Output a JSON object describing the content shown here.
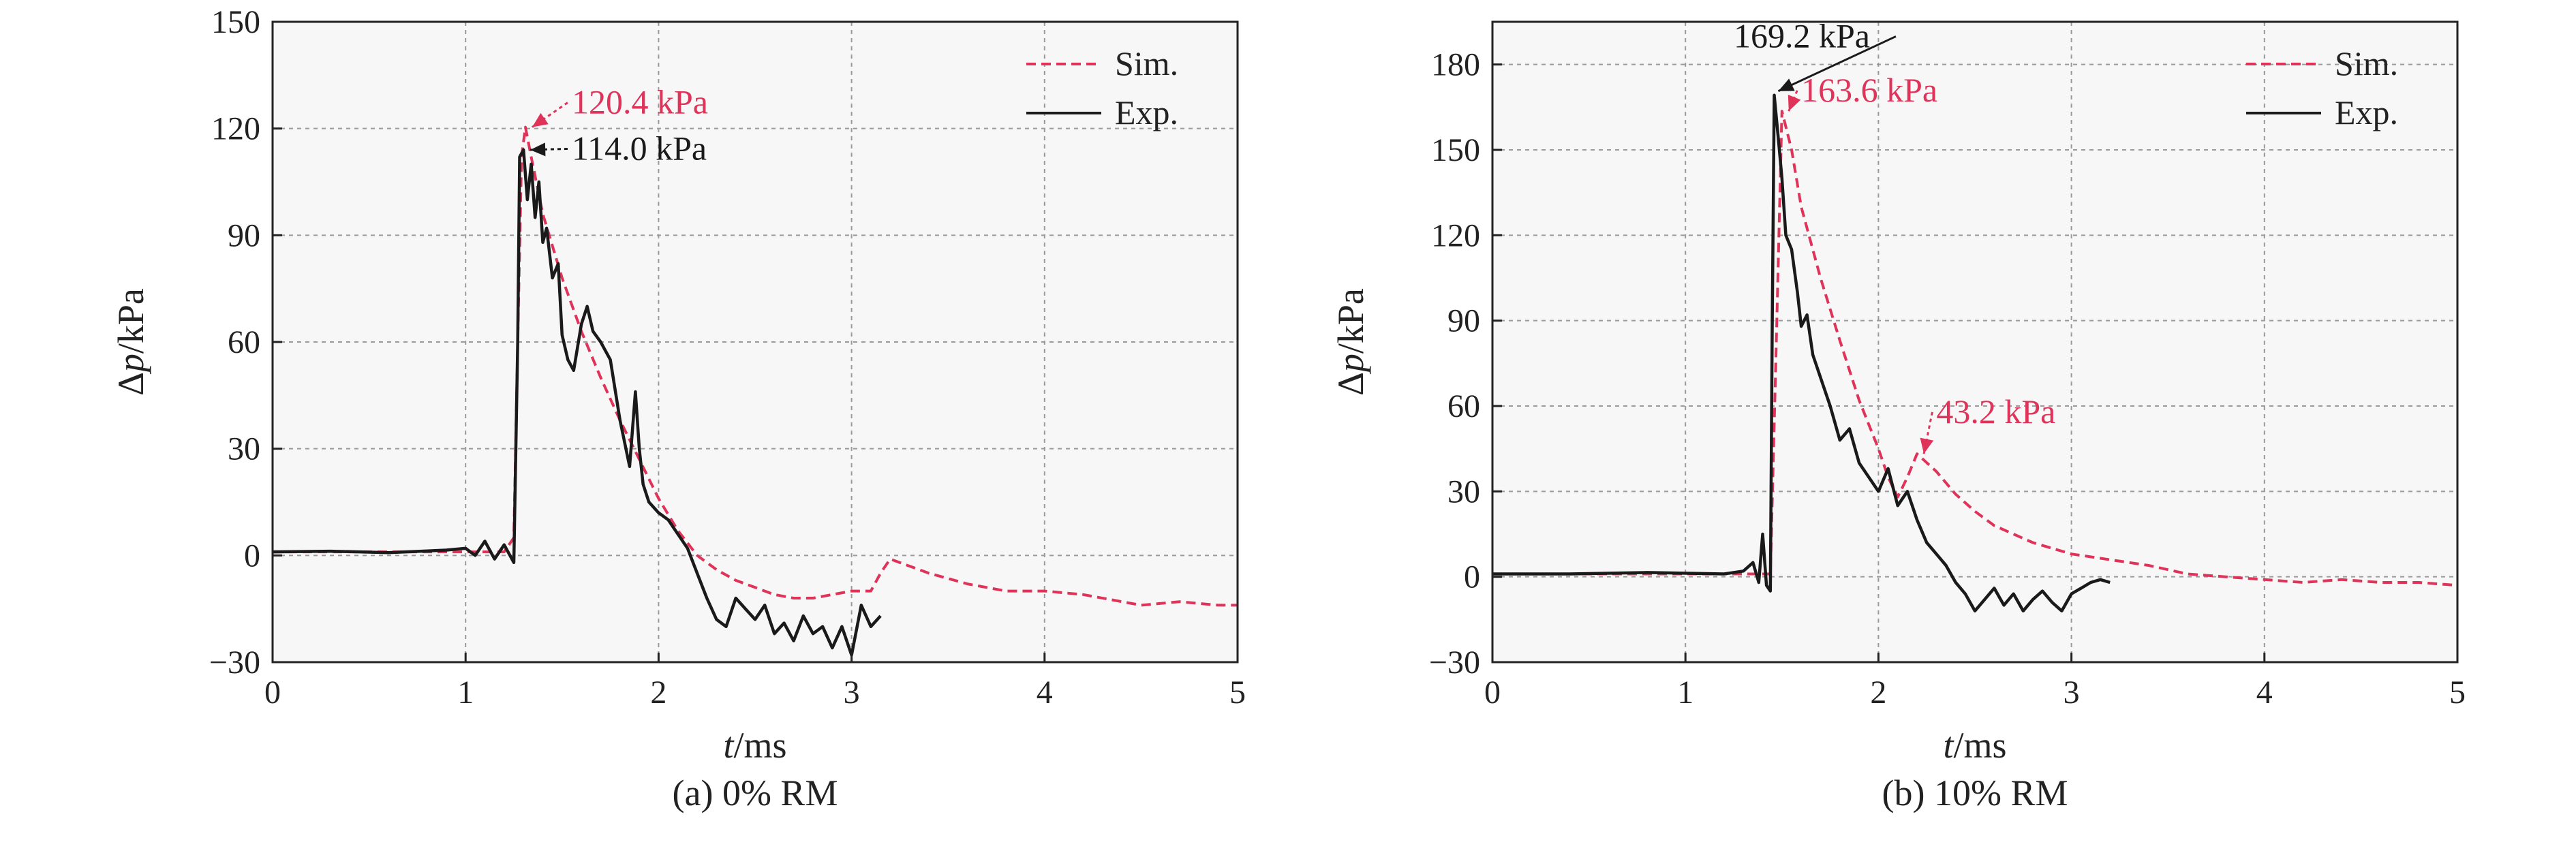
{
  "colors": {
    "sim": "#e0335a",
    "exp": "#1a1a1a",
    "grid": "#9a9a9a",
    "plot_bg": "#f7f7f7"
  },
  "chart_data": [
    {
      "type": "line",
      "caption": "(a) 0% RM",
      "xlabel_var": "t",
      "xlabel_unit": "/ms",
      "ylabel_prefix": "Δ",
      "ylabel_var": "p",
      "ylabel_unit": "/kPa",
      "xlim": [
        0,
        5
      ],
      "ylim": [
        -30,
        150
      ],
      "xticks": [
        0,
        1,
        2,
        3,
        4,
        5
      ],
      "yticks": [
        -30,
        0,
        30,
        60,
        90,
        120,
        150
      ],
      "ytick_labels": [
        "−30",
        "0",
        "30",
        "60",
        "90",
        "120",
        "150"
      ],
      "grid": true,
      "legend_position": "top-right",
      "series": [
        {
          "name": "Sim.",
          "style": "dashed",
          "color": "#e0335a",
          "points": [
            [
              0,
              1
            ],
            [
              1.0,
              1
            ],
            [
              1.2,
              1
            ],
            [
              1.25,
              5
            ],
            [
              1.27,
              60
            ],
            [
              1.29,
              112
            ],
            [
              1.31,
              120.4
            ],
            [
              1.34,
              112
            ],
            [
              1.4,
              96
            ],
            [
              1.5,
              78
            ],
            [
              1.6,
              63
            ],
            [
              1.7,
              50
            ],
            [
              1.8,
              38
            ],
            [
              1.9,
              27
            ],
            [
              2.0,
              16
            ],
            [
              2.1,
              7
            ],
            [
              2.2,
              0
            ],
            [
              2.3,
              -4
            ],
            [
              2.4,
              -7
            ],
            [
              2.5,
              -9
            ],
            [
              2.6,
              -11
            ],
            [
              2.7,
              -12
            ],
            [
              2.8,
              -12
            ],
            [
              2.9,
              -11
            ],
            [
              3.0,
              -10
            ],
            [
              3.1,
              -10
            ],
            [
              3.15,
              -5
            ],
            [
              3.2,
              -1
            ],
            [
              3.3,
              -3
            ],
            [
              3.4,
              -5
            ],
            [
              3.6,
              -8
            ],
            [
              3.8,
              -10
            ],
            [
              4.0,
              -10
            ],
            [
              4.2,
              -11
            ],
            [
              4.4,
              -13
            ],
            [
              4.5,
              -14
            ],
            [
              4.7,
              -13
            ],
            [
              4.9,
              -14
            ],
            [
              5.0,
              -14
            ]
          ]
        },
        {
          "name": "Exp.",
          "style": "solid",
          "color": "#1a1a1a",
          "points": [
            [
              0,
              1
            ],
            [
              0.3,
              1.2
            ],
            [
              0.6,
              0.8
            ],
            [
              0.9,
              1.5
            ],
            [
              1.0,
              2
            ],
            [
              1.05,
              0
            ],
            [
              1.1,
              4
            ],
            [
              1.15,
              -1
            ],
            [
              1.2,
              3
            ],
            [
              1.25,
              -2
            ],
            [
              1.27,
              60
            ],
            [
              1.28,
              112
            ],
            [
              1.3,
              114
            ],
            [
              1.32,
              100
            ],
            [
              1.34,
              110
            ],
            [
              1.36,
              95
            ],
            [
              1.38,
              105
            ],
            [
              1.4,
              88
            ],
            [
              1.42,
              92
            ],
            [
              1.45,
              78
            ],
            [
              1.48,
              82
            ],
            [
              1.5,
              62
            ],
            [
              1.53,
              55
            ],
            [
              1.56,
              52
            ],
            [
              1.6,
              65
            ],
            [
              1.63,
              70
            ],
            [
              1.66,
              63
            ],
            [
              1.7,
              60
            ],
            [
              1.75,
              55
            ],
            [
              1.8,
              38
            ],
            [
              1.85,
              25
            ],
            [
              1.88,
              46
            ],
            [
              1.9,
              30
            ],
            [
              1.92,
              20
            ],
            [
              1.95,
              15
            ],
            [
              2.0,
              12
            ],
            [
              2.05,
              10
            ],
            [
              2.1,
              6
            ],
            [
              2.15,
              2
            ],
            [
              2.2,
              -5
            ],
            [
              2.25,
              -12
            ],
            [
              2.3,
              -18
            ],
            [
              2.35,
              -20
            ],
            [
              2.4,
              -12
            ],
            [
              2.45,
              -15
            ],
            [
              2.5,
              -18
            ],
            [
              2.55,
              -14
            ],
            [
              2.6,
              -22
            ],
            [
              2.65,
              -19
            ],
            [
              2.7,
              -24
            ],
            [
              2.75,
              -17
            ],
            [
              2.8,
              -22
            ],
            [
              2.85,
              -20
            ],
            [
              2.9,
              -26
            ],
            [
              2.95,
              -20
            ],
            [
              3.0,
              -28
            ],
            [
              3.05,
              -14
            ],
            [
              3.1,
              -20
            ],
            [
              3.15,
              -17
            ]
          ]
        }
      ],
      "annotations": [
        {
          "text": "120.4 kPa",
          "color": "#e0335a",
          "x": 1.31,
          "y": 120.4,
          "label_x": 1.55,
          "label_y": 125
        },
        {
          "text": "114.0 kPa",
          "color": "#1a1a1a",
          "x": 1.3,
          "y": 114.0,
          "label_x": 1.55,
          "label_y": 112
        }
      ]
    },
    {
      "type": "line",
      "caption": "(b) 10% RM",
      "xlabel_var": "t",
      "xlabel_unit": "/ms",
      "ylabel_prefix": "Δ",
      "ylabel_var": "p",
      "ylabel_unit": "/kPa",
      "xlim": [
        0,
        5
      ],
      "ylim": [
        -30,
        195
      ],
      "xticks": [
        0,
        1,
        2,
        3,
        4,
        5
      ],
      "yticks": [
        -30,
        0,
        30,
        60,
        90,
        120,
        150,
        180
      ],
      "ytick_labels": [
        "−30",
        "0",
        "30",
        "60",
        "90",
        "120",
        "150",
        "180"
      ],
      "grid": true,
      "legend_position": "top-right",
      "series": [
        {
          "name": "Sim.",
          "style": "dashed",
          "color": "#e0335a",
          "points": [
            [
              0,
              1
            ],
            [
              1.3,
              1
            ],
            [
              1.44,
              1
            ],
            [
              1.47,
              80
            ],
            [
              1.5,
              163.6
            ],
            [
              1.55,
              150
            ],
            [
              1.6,
              130
            ],
            [
              1.7,
              105
            ],
            [
              1.8,
              83
            ],
            [
              1.9,
              62
            ],
            [
              2.0,
              45
            ],
            [
              2.05,
              35
            ],
            [
              2.1,
              28
            ],
            [
              2.15,
              35
            ],
            [
              2.2,
              43.2
            ],
            [
              2.3,
              37
            ],
            [
              2.4,
              29
            ],
            [
              2.5,
              23
            ],
            [
              2.6,
              18
            ],
            [
              2.8,
              12
            ],
            [
              3.0,
              8
            ],
            [
              3.2,
              6
            ],
            [
              3.4,
              4
            ],
            [
              3.6,
              1
            ],
            [
              3.8,
              0
            ],
            [
              4.0,
              -1
            ],
            [
              4.2,
              -2
            ],
            [
              4.4,
              -1
            ],
            [
              4.6,
              -2
            ],
            [
              4.8,
              -2
            ],
            [
              5.0,
              -3
            ]
          ]
        },
        {
          "name": "Exp.",
          "style": "solid",
          "color": "#1a1a1a",
          "points": [
            [
              0,
              1
            ],
            [
              0.4,
              1
            ],
            [
              0.8,
              1.5
            ],
            [
              1.2,
              1
            ],
            [
              1.3,
              2
            ],
            [
              1.35,
              5
            ],
            [
              1.38,
              -2
            ],
            [
              1.4,
              15
            ],
            [
              1.42,
              -3
            ],
            [
              1.44,
              -5
            ],
            [
              1.45,
              90
            ],
            [
              1.46,
              169.2
            ],
            [
              1.48,
              155
            ],
            [
              1.5,
              140
            ],
            [
              1.52,
              120
            ],
            [
              1.55,
              115
            ],
            [
              1.58,
              100
            ],
            [
              1.6,
              88
            ],
            [
              1.63,
              92
            ],
            [
              1.66,
              78
            ],
            [
              1.7,
              70
            ],
            [
              1.75,
              60
            ],
            [
              1.8,
              48
            ],
            [
              1.85,
              52
            ],
            [
              1.9,
              40
            ],
            [
              1.95,
              35
            ],
            [
              2.0,
              30
            ],
            [
              2.05,
              38
            ],
            [
              2.1,
              25
            ],
            [
              2.15,
              30
            ],
            [
              2.2,
              20
            ],
            [
              2.25,
              12
            ],
            [
              2.3,
              8
            ],
            [
              2.35,
              4
            ],
            [
              2.4,
              -2
            ],
            [
              2.45,
              -6
            ],
            [
              2.5,
              -12
            ],
            [
              2.55,
              -8
            ],
            [
              2.6,
              -4
            ],
            [
              2.65,
              -10
            ],
            [
              2.7,
              -6
            ],
            [
              2.75,
              -12
            ],
            [
              2.8,
              -8
            ],
            [
              2.85,
              -5
            ],
            [
              2.9,
              -9
            ],
            [
              2.95,
              -12
            ],
            [
              3.0,
              -6
            ],
            [
              3.05,
              -4
            ],
            [
              3.1,
              -2
            ],
            [
              3.15,
              -1
            ],
            [
              3.2,
              -2
            ]
          ]
        }
      ],
      "annotations": [
        {
          "text": "169.2 kPa",
          "color": "#1a1a1a",
          "x": 1.46,
          "y": 169.2,
          "label_x": 1.25,
          "label_y": 187
        },
        {
          "text": "163.6 kPa",
          "color": "#e0335a",
          "x": 1.5,
          "y": 163.6,
          "label_x": 1.6,
          "label_y": 168
        },
        {
          "text": "43.2 kPa",
          "color": "#e0335a",
          "x": 2.2,
          "y": 43.2,
          "label_x": 2.3,
          "label_y": 55
        }
      ]
    }
  ]
}
